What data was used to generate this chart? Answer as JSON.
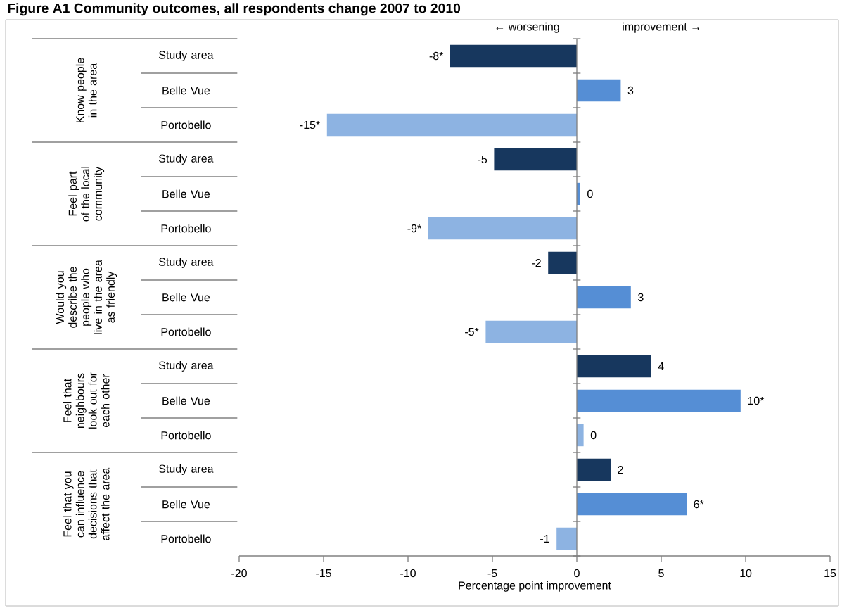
{
  "chart_data": {
    "type": "bar",
    "orientation": "horizontal",
    "title": "Figure A1 Community outcomes, all respondents change 2007 to 2010",
    "xlabel": "Percentage point improvement",
    "categories": [
      "Study area",
      "Belle Vue",
      "Portobello",
      "Study area",
      "Belle Vue",
      "Portobello",
      "Study area",
      "Belle Vue",
      "Portobello",
      "Study area",
      "Belle Vue",
      "Portobello",
      "Study area",
      "Belle Vue",
      "Portobello"
    ],
    "values": [
      -7.5,
      2.6,
      -14.8,
      -4.9,
      0.2,
      -8.8,
      -1.7,
      3.2,
      -5.4,
      4.4,
      9.7,
      0.4,
      2.0,
      6.5,
      -1.2
    ],
    "colors": [
      "#17375e",
      "#558ed5",
      "#8db3e2",
      "#17375e",
      "#558ed5",
      "#8db3e2",
      "#17375e",
      "#558ed5",
      "#8db3e2",
      "#17375e",
      "#558ed5",
      "#8db3e2",
      "#17375e",
      "#558ed5",
      "#8db3e2"
    ],
    "value_labels": [
      "-8*",
      "3",
      "-15*",
      "-5",
      "0",
      "-9*",
      "-2",
      "3",
      "-5*",
      "4",
      "10*",
      "0",
      "2",
      "6*",
      "-1"
    ],
    "xlim": [
      -20,
      15
    ],
    "xticks": [
      -20,
      -15,
      -10,
      -5,
      0,
      5,
      10,
      15
    ],
    "annotations": [
      "← worsening",
      "improvement →",
      "Know people in the area",
      "Feel part of the local community",
      "Would you describe the people who live in the area as friendly",
      "Feel that neighbours look out for each other",
      "Feel that you can influence decisions that affect the area"
    ]
  }
}
